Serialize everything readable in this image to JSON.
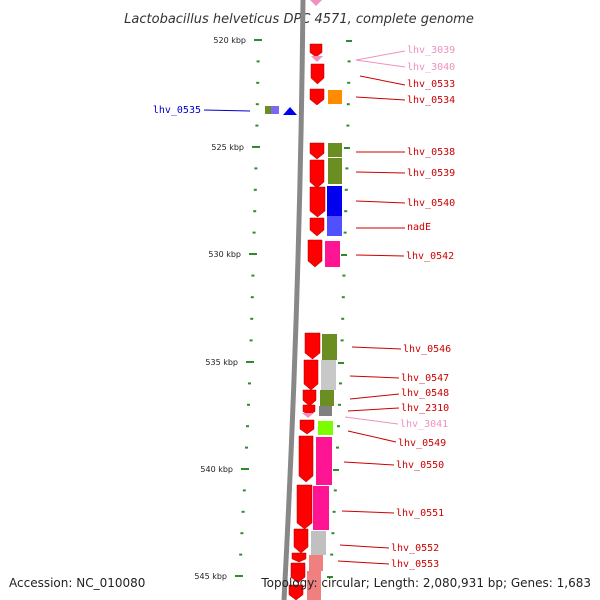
{
  "title": "Lactobacillus helveticus DPC 4571, complete genome",
  "footer": {
    "accession": "Accession: NC_010080",
    "summary": "Topology: circular; Length: 2,080,931 bp; Genes: 1,683"
  },
  "colors": {
    "backbone": "#888888",
    "tick": "#2e8b2e",
    "forward_gene": "#ff0000",
    "label_red": "#cc0000",
    "label_pink": "#f090c0",
    "label_blue": "#0000cc"
  },
  "ruler": {
    "major_labels": [
      "520 kbp",
      "525 kbp",
      "530 kbp",
      "535 kbp",
      "540 kbp",
      "545 kbp"
    ]
  },
  "genes": [
    {
      "label": "lhv_3039",
      "color": "#f090c0"
    },
    {
      "label": "lhv_3040",
      "color": "#f090c0"
    },
    {
      "label": "lhv_0533",
      "color": "#cc0000"
    },
    {
      "label": "lhv_0534",
      "color": "#cc0000"
    },
    {
      "label": "lhv_0535",
      "color": "#0000cc"
    },
    {
      "label": "lhv_0538",
      "color": "#cc0000"
    },
    {
      "label": "lhv_0539",
      "color": "#cc0000"
    },
    {
      "label": "lhv_0540",
      "color": "#cc0000"
    },
    {
      "label": "nadE",
      "color": "#cc0000"
    },
    {
      "label": "lhv_0542",
      "color": "#cc0000"
    },
    {
      "label": "lhv_0546",
      "color": "#cc0000"
    },
    {
      "label": "lhv_0547",
      "color": "#cc0000"
    },
    {
      "label": "lhv_0548",
      "color": "#cc0000"
    },
    {
      "label": "lhv_2310",
      "color": "#cc0000"
    },
    {
      "label": "lhv_3041",
      "color": "#f090c0"
    },
    {
      "label": "lhv_0549",
      "color": "#cc0000"
    },
    {
      "label": "lhv_0550",
      "color": "#cc0000"
    },
    {
      "label": "lhv_0551",
      "color": "#cc0000"
    },
    {
      "label": "lhv_0552",
      "color": "#cc0000"
    },
    {
      "label": "lhv_0553",
      "color": "#cc0000"
    }
  ]
}
